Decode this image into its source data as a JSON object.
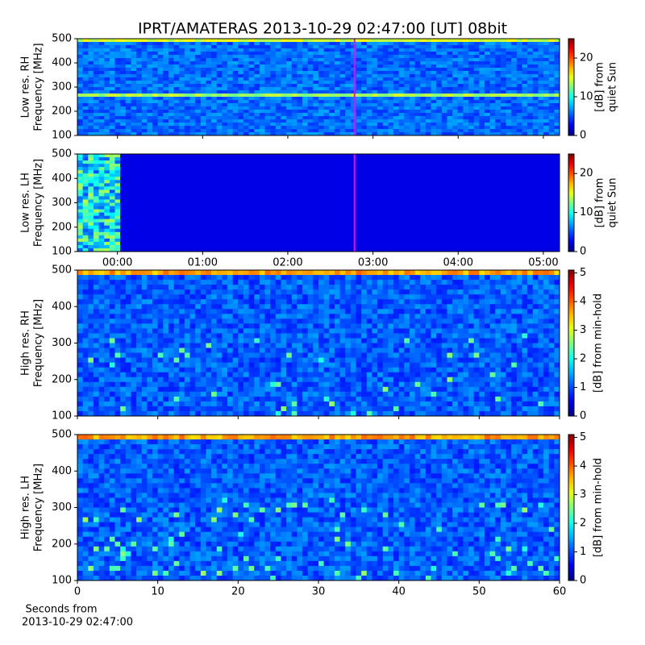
{
  "title": "IPRT/AMATERAS 2013-10-29 02:47:00 [UT]   08bit",
  "chart_data": [
    {
      "type": "spectrogram",
      "ylabel": [
        "Low res. RH",
        "Frequency [MHz]"
      ],
      "ylim": [
        100,
        500
      ],
      "yticks": [
        100,
        200,
        300,
        400,
        500
      ],
      "xlim": [
        -0.47,
        5.19
      ],
      "xticks": [
        {
          "value": 0,
          "label": "00:00"
        },
        {
          "value": 1,
          "label": "01:00"
        },
        {
          "value": 2,
          "label": "02:00"
        },
        {
          "value": 3,
          "label": "03:00"
        },
        {
          "value": 4,
          "label": "04:00"
        },
        {
          "value": 5,
          "label": "05:00"
        }
      ],
      "show_xticklabels": false,
      "vline": 2.7833,
      "vline_color": "#ff00ff",
      "clim": [
        0,
        25
      ],
      "cticks": [
        0,
        10,
        20
      ],
      "clabel": [
        "[dB] from",
        "quiet Sun"
      ]
    },
    {
      "type": "spectrogram",
      "ylabel": [
        "Low res. LH",
        "Frequency [MHz]"
      ],
      "ylim": [
        100,
        500
      ],
      "yticks": [
        100,
        200,
        300,
        400,
        500
      ],
      "xlim": [
        -0.47,
        5.19
      ],
      "xticks": [
        {
          "value": 0,
          "label": "00:00"
        },
        {
          "value": 1,
          "label": "01:00"
        },
        {
          "value": 2,
          "label": "02:00"
        },
        {
          "value": 3,
          "label": "03:00"
        },
        {
          "value": 4,
          "label": "04:00"
        },
        {
          "value": 5,
          "label": "05:00"
        }
      ],
      "show_xticklabels": true,
      "vline": 2.7833,
      "vline_color": "#ff00ff",
      "clim": [
        0,
        25
      ],
      "cticks": [
        0,
        10,
        20
      ],
      "clabel": [
        "[dB] from",
        "quiet Sun"
      ]
    },
    {
      "type": "spectrogram",
      "ylabel": [
        "High res. RH",
        "Frequency [MHz]"
      ],
      "ylim": [
        100,
        500
      ],
      "yticks": [
        100,
        200,
        300,
        400,
        500
      ],
      "xlim": [
        0,
        60
      ],
      "xticks": [
        0,
        10,
        20,
        30,
        40,
        50,
        60
      ],
      "show_xticklabels": false,
      "clim": [
        0,
        5.1
      ],
      "cticks": [
        0,
        1,
        2,
        3,
        4,
        5
      ],
      "clabel": [
        "[dB] from min-hold"
      ]
    },
    {
      "type": "spectrogram",
      "ylabel": [
        "High res. LH",
        "Frequency [MHz]"
      ],
      "ylim": [
        100,
        500
      ],
      "yticks": [
        100,
        200,
        300,
        400,
        500
      ],
      "xlim": [
        0,
        60
      ],
      "xticks": [
        0,
        10,
        20,
        30,
        40,
        50,
        60
      ],
      "show_xticklabels": true,
      "xlabel": [
        "Seconds from",
        "2013-10-29 02:47:00"
      ],
      "clim": [
        0,
        5.1
      ],
      "cticks": [
        0,
        1,
        2,
        3,
        4,
        5
      ],
      "clabel": [
        "[dB] from min-hold"
      ]
    }
  ]
}
